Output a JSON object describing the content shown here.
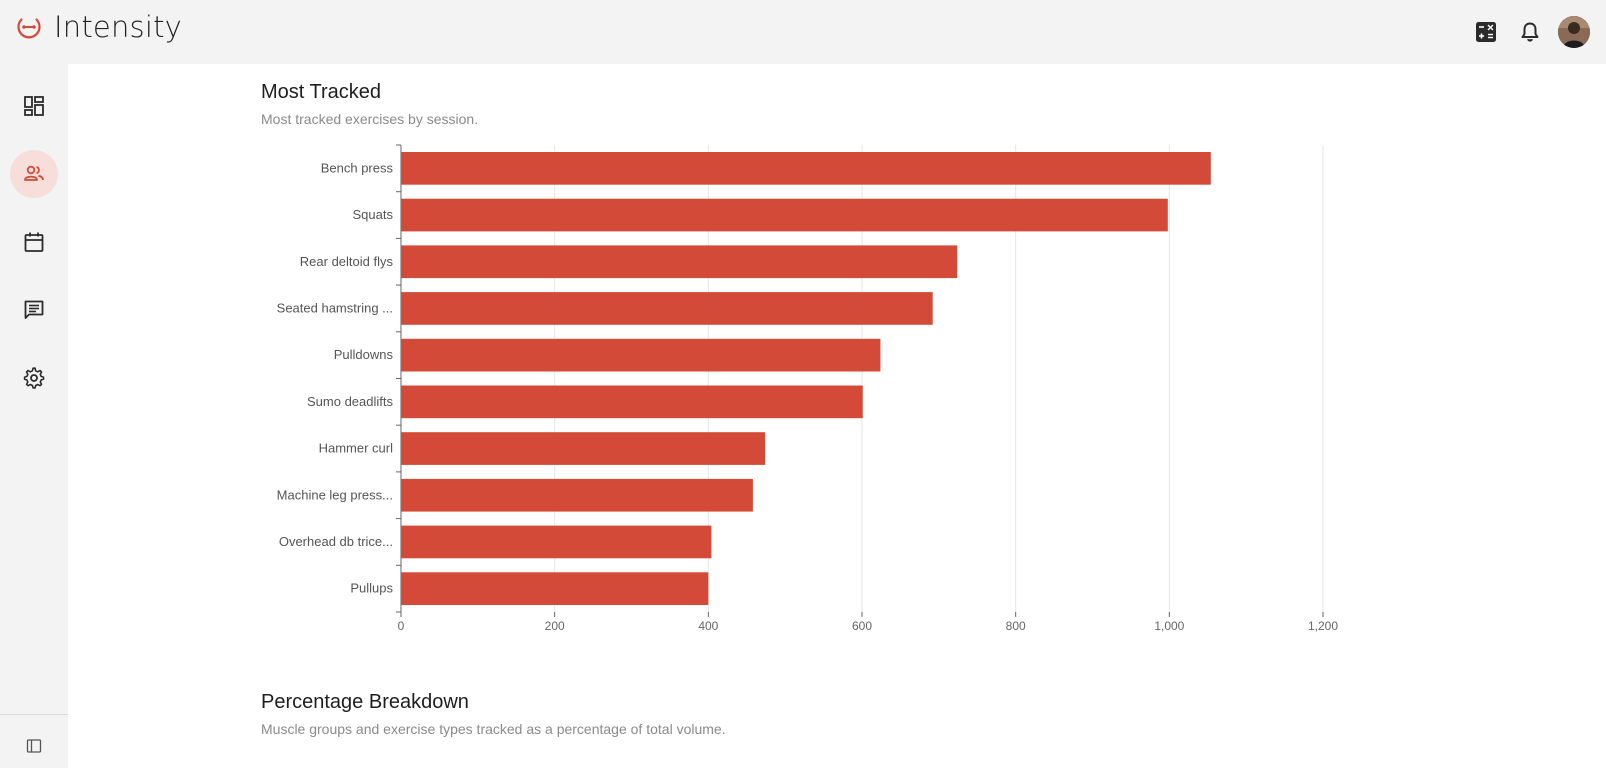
{
  "app": {
    "name": "Intensity",
    "accent": "#d44a38"
  },
  "topbar": {
    "icons": [
      "calculator-icon",
      "bell-icon",
      "avatar"
    ]
  },
  "sidebar": {
    "items": [
      {
        "name": "dashboard-icon",
        "active": false
      },
      {
        "name": "users-icon",
        "active": true
      },
      {
        "name": "calendar-icon",
        "active": false
      },
      {
        "name": "chat-icon",
        "active": false
      },
      {
        "name": "settings-icon",
        "active": false
      }
    ],
    "footer_icon": "sidebar-collapse-icon"
  },
  "sections": {
    "most_tracked": {
      "title": "Most Tracked",
      "subtitle": "Most tracked exercises by session."
    },
    "percentage_breakdown": {
      "title": "Percentage Breakdown",
      "subtitle": "Muscle groups and exercise types tracked as a percentage of total volume."
    }
  },
  "chart_data": {
    "type": "bar",
    "orientation": "horizontal",
    "categories": [
      "Bench press",
      "Squats",
      "Rear deltoid flys",
      "Seated hamstring ...",
      "Pulldowns",
      "Sumo deadlifts",
      "Hammer curl",
      "Machine leg press...",
      "Overhead db trice...",
      "Pullups"
    ],
    "values": [
      1054,
      998,
      724,
      692,
      624,
      601,
      474,
      458,
      404,
      400
    ],
    "xlim": [
      0,
      1200
    ],
    "xticks": [
      "0",
      "200",
      "400",
      "600",
      "800",
      "1,000",
      "1,200"
    ],
    "grid": true,
    "color": "#d44a38"
  }
}
